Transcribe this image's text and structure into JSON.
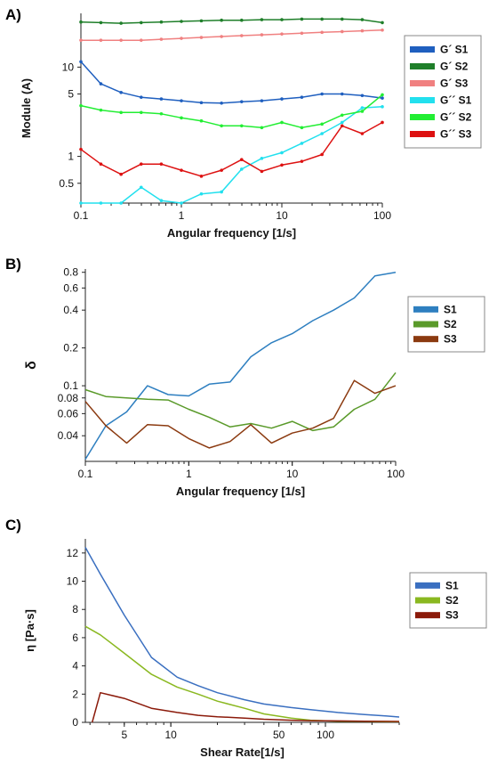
{
  "chart_data": [
    {
      "panel_label": "A)",
      "type": "line",
      "xscale": "log",
      "yscale": "log",
      "xlabel": "Angular frequency [1/s]",
      "ylabel": "Module (A)",
      "xlim": [
        0.1,
        100
      ],
      "ylim": [
        0.3,
        40
      ],
      "xticks": [
        0.1,
        1,
        10,
        100
      ],
      "xticklabels": [
        "0.1",
        "1",
        "10",
        "100"
      ],
      "yticks": [
        0.5,
        1,
        5,
        10
      ],
      "yticklabels": [
        "0.5",
        "1",
        "5",
        "10"
      ],
      "legend_position": "right",
      "x": [
        0.1,
        0.158,
        0.251,
        0.398,
        0.631,
        1,
        1.58,
        2.51,
        3.98,
        6.31,
        10,
        15.8,
        25.1,
        39.8,
        63.1,
        100
      ],
      "series": [
        {
          "name": "G´ S1",
          "color": "#1f5fbf",
          "values": [
            11.5,
            6.5,
            5.2,
            4.6,
            4.4,
            4.2,
            4.0,
            3.95,
            4.1,
            4.2,
            4.4,
            4.6,
            5.0,
            5.0,
            4.8,
            4.5
          ]
        },
        {
          "name": "G´ S2",
          "color": "#1f7f2a",
          "values": [
            32.0,
            31.5,
            31.0,
            31.5,
            32.0,
            32.5,
            33.0,
            33.5,
            33.5,
            34.0,
            34.0,
            34.5,
            34.5,
            34.5,
            34.0,
            31.5
          ]
        },
        {
          "name": "G´ S3",
          "color": "#f08080",
          "values": [
            20.0,
            20.0,
            20.0,
            20.0,
            20.5,
            21.0,
            21.5,
            22.0,
            22.5,
            23.0,
            23.5,
            24.0,
            24.5,
            25.0,
            25.5,
            26.0
          ]
        },
        {
          "name": "G´´ S1",
          "color": "#22e0ee",
          "values": [
            0.3,
            0.3,
            0.3,
            0.45,
            0.32,
            0.3,
            0.38,
            0.4,
            0.72,
            0.95,
            1.1,
            1.4,
            1.8,
            2.4,
            3.5,
            3.6
          ]
        },
        {
          "name": "G´´ S2",
          "color": "#22ee33",
          "values": [
            3.7,
            3.3,
            3.1,
            3.1,
            3.0,
            2.7,
            2.5,
            2.2,
            2.2,
            2.1,
            2.4,
            2.1,
            2.3,
            2.9,
            3.2,
            4.9
          ]
        },
        {
          "name": "G´´ S3",
          "color": "#dd1111",
          "values": [
            1.2,
            0.82,
            0.63,
            0.82,
            0.82,
            0.7,
            0.6,
            0.7,
            0.92,
            0.68,
            0.8,
            0.88,
            1.05,
            2.2,
            1.8,
            2.4
          ]
        }
      ]
    },
    {
      "panel_label": "B)",
      "type": "line",
      "xscale": "log",
      "yscale": "log",
      "xlabel": "Angular frequency [1/s]",
      "ylabel": "δ",
      "xlim": [
        0.1,
        100
      ],
      "ylim": [
        0.025,
        0.85
      ],
      "xticks": [
        0.1,
        1,
        10,
        100
      ],
      "xticklabels": [
        "0.1",
        "1",
        "10",
        "100"
      ],
      "yticks": [
        0.04,
        0.06,
        0.08,
        0.1,
        0.2,
        0.4,
        0.6,
        0.8
      ],
      "yticklabels": [
        "0.04",
        "0.06",
        "0.08",
        "0.1",
        "0.2",
        "0.4",
        "0.6",
        "0.8"
      ],
      "legend_position": "right",
      "x": [
        0.1,
        0.158,
        0.251,
        0.398,
        0.631,
        1,
        1.58,
        2.51,
        3.98,
        6.31,
        10,
        15.8,
        25.1,
        39.8,
        63.1,
        100
      ],
      "series": [
        {
          "name": "S1",
          "color": "#2e7fc0",
          "values": [
            0.026,
            0.048,
            0.062,
            0.1,
            0.085,
            0.083,
            0.103,
            0.107,
            0.17,
            0.22,
            0.26,
            0.33,
            0.4,
            0.5,
            0.75,
            0.8
          ]
        },
        {
          "name": "S2",
          "color": "#5a9a2a",
          "values": [
            0.093,
            0.082,
            0.08,
            0.078,
            0.077,
            0.065,
            0.056,
            0.047,
            0.05,
            0.046,
            0.052,
            0.044,
            0.047,
            0.065,
            0.078,
            0.127
          ]
        },
        {
          "name": "S3",
          "color": "#8b3a10",
          "values": [
            0.075,
            0.048,
            0.035,
            0.049,
            0.048,
            0.038,
            0.032,
            0.036,
            0.049,
            0.035,
            0.042,
            0.046,
            0.055,
            0.11,
            0.087,
            0.1
          ]
        }
      ]
    },
    {
      "panel_label": "C)",
      "type": "line",
      "xscale": "log",
      "yscale": "linear",
      "xlabel": "Shear Rate[1/s]",
      "ylabel": "η [Pa·s]",
      "xlim": [
        2.8,
        300
      ],
      "ylim": [
        0,
        13
      ],
      "xticks": [
        5,
        10,
        50,
        100
      ],
      "xticklabels": [
        "5",
        "10",
        "50",
        "100"
      ],
      "yticks": [
        0,
        2,
        4,
        6,
        8,
        10,
        12
      ],
      "yticklabels": [
        "0",
        "2",
        "4",
        "6",
        "8",
        "10",
        "12"
      ],
      "legend_position": "right",
      "series": [
        {
          "name": "S1",
          "color": "#3a6fc0",
          "x": [
            2.8,
            3.5,
            5,
            7.5,
            11,
            15,
            20,
            30,
            40,
            60,
            80,
            120,
            180,
            250,
            300
          ],
          "values": [
            12.4,
            10.5,
            7.6,
            4.6,
            3.2,
            2.6,
            2.1,
            1.6,
            1.3,
            1.05,
            0.9,
            0.7,
            0.55,
            0.45,
            0.38
          ]
        },
        {
          "name": "S2",
          "color": "#8ab820",
          "x": [
            2.8,
            3.5,
            5,
            7.5,
            11,
            15,
            20,
            30,
            40,
            60,
            80,
            120,
            180,
            250,
            300
          ],
          "values": [
            6.8,
            6.2,
            4.9,
            3.4,
            2.5,
            2.0,
            1.5,
            1.0,
            0.6,
            0.3,
            0.15,
            0.08,
            0.06,
            0.05,
            0.05
          ]
        },
        {
          "name": "S3",
          "color": "#8b1a0a",
          "x": [
            3.1,
            3.5,
            5,
            7.5,
            11,
            15,
            20,
            30,
            40,
            60,
            80,
            120,
            180,
            250,
            300
          ],
          "values": [
            0.0,
            2.1,
            1.7,
            1.0,
            0.7,
            0.5,
            0.4,
            0.3,
            0.22,
            0.15,
            0.12,
            0.1,
            0.08,
            0.07,
            0.06
          ]
        }
      ]
    }
  ]
}
